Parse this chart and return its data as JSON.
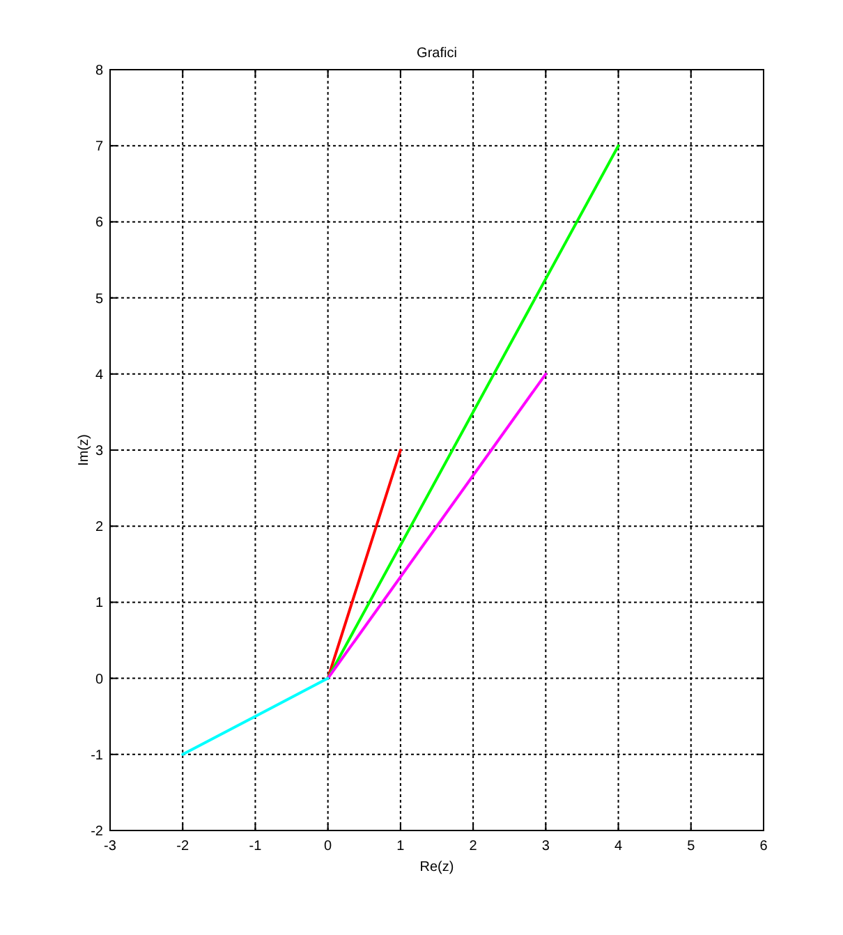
{
  "chart_data": {
    "type": "line",
    "title": "Grafici",
    "xlabel": "Re(z)",
    "ylabel": "Im(z)",
    "xlim": [
      -3,
      6
    ],
    "ylim": [
      -2,
      8
    ],
    "xticks": [
      -3,
      -2,
      -1,
      0,
      1,
      2,
      3,
      4,
      5,
      6
    ],
    "yticks": [
      -2,
      -1,
      0,
      1,
      2,
      3,
      4,
      5,
      6,
      7,
      8
    ],
    "grid": true,
    "marker": "none",
    "line_style": "solid",
    "series": [
      {
        "color": "#ff0000",
        "x": [
          0,
          1
        ],
        "values": [
          0,
          3
        ]
      },
      {
        "color": "#00ff00",
        "x": [
          0,
          4
        ],
        "values": [
          0,
          7
        ]
      },
      {
        "color": "#ff00ff",
        "x": [
          0,
          3
        ],
        "values": [
          0,
          4
        ]
      },
      {
        "color": "#00ffff",
        "x": [
          0,
          -2
        ],
        "values": [
          0,
          -1
        ]
      }
    ]
  }
}
